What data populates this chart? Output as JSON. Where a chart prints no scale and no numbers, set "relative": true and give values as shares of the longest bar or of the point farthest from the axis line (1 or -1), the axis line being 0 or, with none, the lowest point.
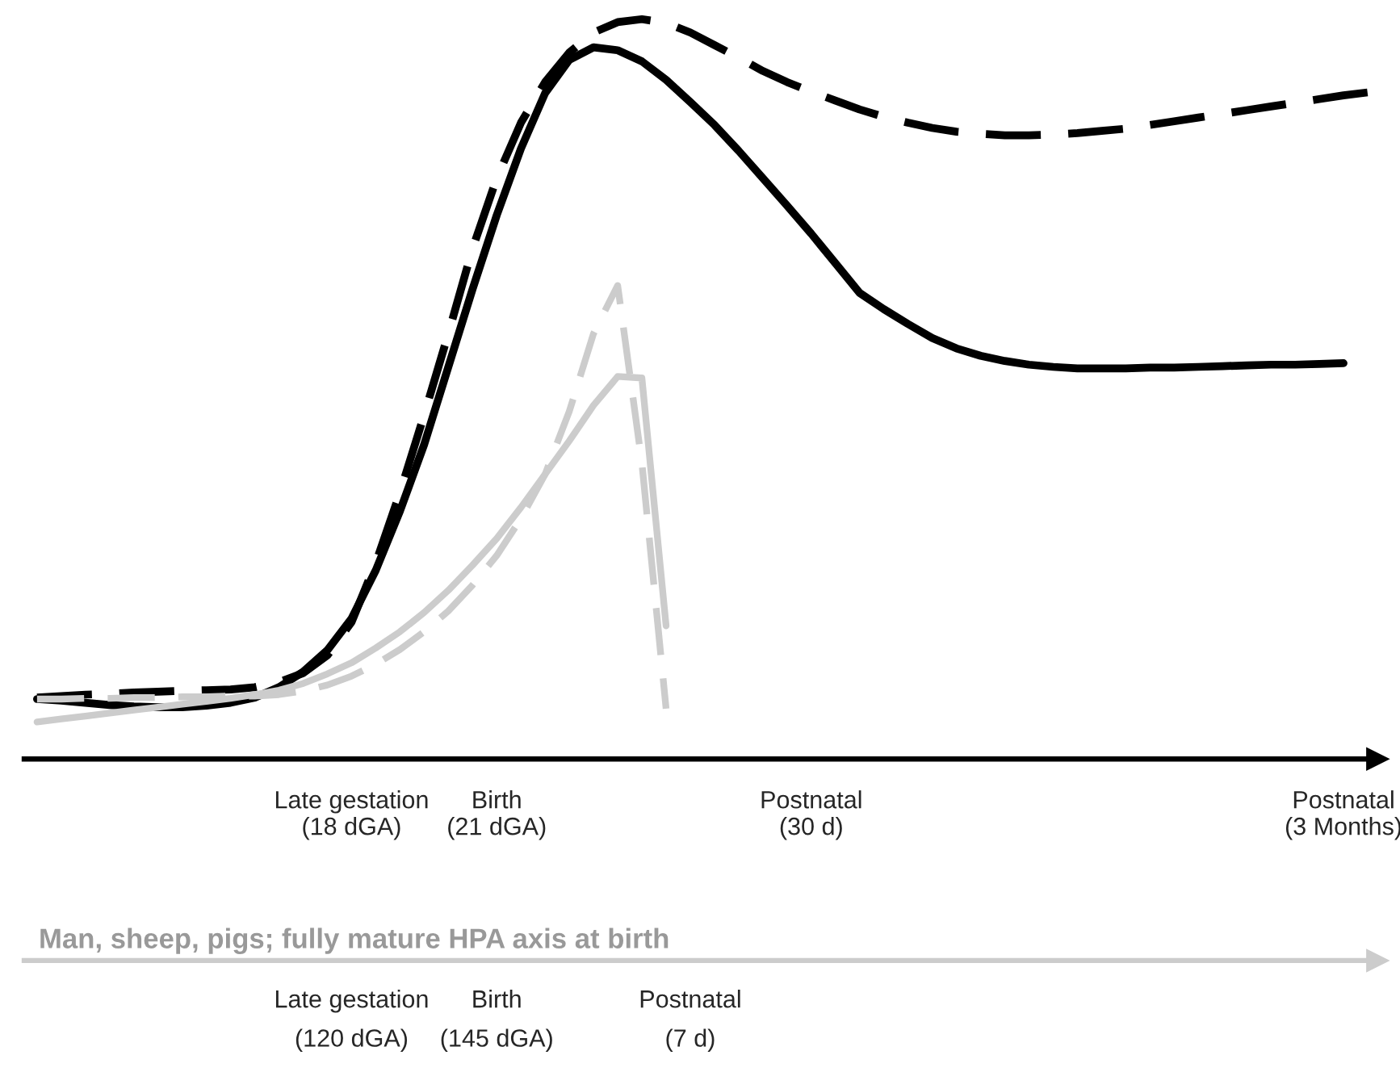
{
  "chart_data": [
    {
      "type": "line",
      "relative": true,
      "grid": false,
      "legend": false,
      "categories": [
        null,
        null,
        null,
        null,
        null,
        null,
        null,
        null,
        null,
        null,
        null,
        null,
        null,
        "Late gestation\n(18 dGA)",
        null,
        null,
        null,
        null,
        null,
        "Birth\n(21 dGA)",
        null,
        null,
        null,
        null,
        null,
        null,
        null,
        null,
        null,
        null,
        null,
        null,
        "Postnatal\n(30 d)",
        null,
        null,
        null,
        null,
        null,
        null,
        null,
        null,
        null,
        null,
        null,
        null,
        null,
        null,
        null,
        null,
        null,
        null,
        null,
        null,
        null,
        "Postnatal\n(3 Months)",
        null
      ],
      "series": [
        {
          "color": "#000000",
          "line_style": "solid",
          "values": [
            0.081,
            0.079,
            0.076,
            0.073,
            0.071,
            0.07,
            0.07,
            0.072,
            0.076,
            0.083,
            0.097,
            0.118,
            0.147,
            0.19,
            0.255,
            0.335,
            0.425,
            0.53,
            0.635,
            0.735,
            0.825,
            0.9,
            0.945,
            0.962,
            0.958,
            0.943,
            0.918,
            0.888,
            0.857,
            0.822,
            0.785,
            0.748,
            0.71,
            0.67,
            0.63,
            0.608,
            0.588,
            0.569,
            0.555,
            0.545,
            0.538,
            0.533,
            0.53,
            0.528,
            0.528,
            0.528,
            0.529,
            0.529,
            0.53,
            0.531,
            0.532,
            0.533,
            0.533,
            0.534,
            0.535,
            null
          ]
        },
        {
          "color": "#000000",
          "line_style": "dashed",
          "values": [
            0.083,
            0.085,
            0.087,
            0.088,
            0.09,
            0.091,
            0.092,
            0.093,
            0.094,
            0.097,
            0.104,
            0.116,
            0.14,
            0.185,
            0.265,
            0.36,
            0.465,
            0.575,
            0.69,
            0.785,
            0.86,
            0.915,
            0.955,
            0.982,
            0.996,
            1.0,
            0.995,
            0.982,
            0.965,
            0.948,
            0.93,
            0.915,
            0.902,
            0.89,
            0.878,
            0.868,
            0.86,
            0.853,
            0.848,
            0.845,
            0.843,
            0.843,
            0.844,
            0.846,
            0.849,
            0.852,
            0.857,
            0.862,
            0.867,
            0.872,
            0.877,
            0.882,
            0.887,
            0.892,
            0.897,
            0.901
          ]
        },
        {
          "color": "#cccccc",
          "line_style": "solid",
          "values": [
            0.05,
            0.054,
            0.058,
            0.062,
            0.066,
            0.07,
            0.074,
            0.078,
            0.082,
            0.087,
            0.093,
            0.102,
            0.115,
            0.13,
            0.15,
            0.172,
            0.198,
            0.228,
            0.262,
            0.298,
            0.34,
            0.385,
            0.43,
            0.478,
            0.517,
            0.515,
            0.18,
            null,
            null,
            null,
            null,
            null,
            null,
            null,
            null,
            null,
            null,
            null,
            null,
            null,
            null,
            null,
            null,
            null,
            null,
            null,
            null,
            null,
            null,
            null,
            null,
            null,
            null,
            null,
            null,
            null
          ]
        },
        {
          "color": "#cccccc",
          "line_style": "dashed",
          "values": [
            0.081,
            0.081,
            0.082,
            0.082,
            0.083,
            0.083,
            0.084,
            0.084,
            0.085,
            0.085,
            0.087,
            0.092,
            0.1,
            0.112,
            0.128,
            0.148,
            0.172,
            0.2,
            0.235,
            0.275,
            0.325,
            0.385,
            0.47,
            0.575,
            0.64,
            0.4,
            0.068,
            null,
            null,
            null,
            null,
            null,
            null,
            null,
            null,
            null,
            null,
            null,
            null,
            null,
            null,
            null,
            null,
            null,
            null,
            null,
            null,
            null,
            null,
            null,
            null,
            null,
            null,
            null,
            null,
            null
          ]
        }
      ]
    },
    {
      "type": "other",
      "xlabel": "Man, sheep, pigs; fully mature HPA axis at birth",
      "categories": [
        null,
        null,
        null,
        null,
        null,
        null,
        null,
        null,
        null,
        null,
        null,
        null,
        null,
        "Late gestation\n(120 dGA)",
        null,
        null,
        null,
        null,
        null,
        "Birth\n(145 dGA)",
        null,
        null,
        null,
        null,
        null,
        null,
        null,
        "Postnatal\n(7 d)",
        null,
        null,
        null,
        null,
        null,
        null,
        null,
        null,
        null,
        null,
        null,
        null,
        null,
        null,
        null,
        null,
        null,
        null,
        null,
        null,
        null,
        null,
        null,
        null,
        null,
        null,
        null,
        null
      ]
    }
  ]
}
